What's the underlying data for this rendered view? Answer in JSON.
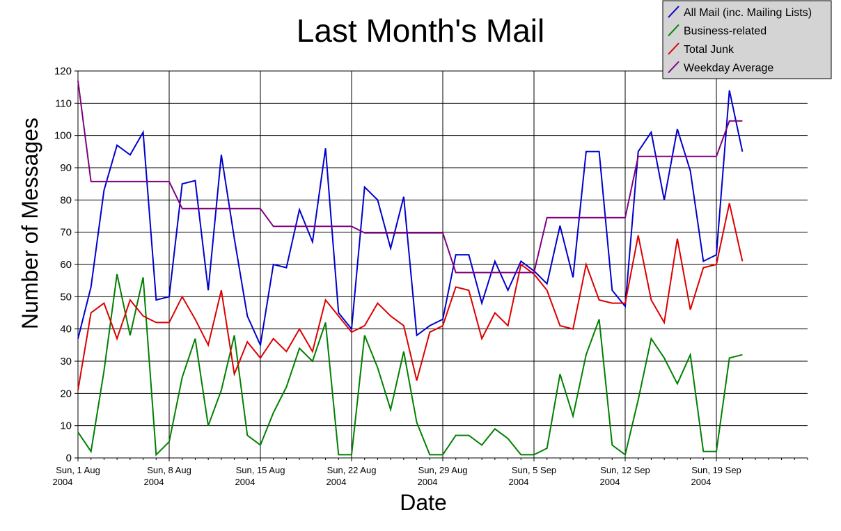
{
  "chart_data": {
    "type": "line",
    "title": "Last Month's Mail",
    "xlabel": "Date",
    "ylabel": "Number of Messages",
    "ylim": [
      0,
      120
    ],
    "yticks": [
      0,
      10,
      20,
      30,
      40,
      50,
      60,
      70,
      80,
      90,
      100,
      110,
      120
    ],
    "xlim": [
      "2004-08-01",
      "2004-09-26"
    ],
    "x_ticks": [
      {
        "date": "2004-08-01",
        "line1": "Sun, 1 Aug",
        "line2": "2004"
      },
      {
        "date": "2004-08-08",
        "line1": "Sun, 8 Aug",
        "line2": "2004"
      },
      {
        "date": "2004-08-15",
        "line1": "Sun, 15 Aug",
        "line2": "2004"
      },
      {
        "date": "2004-08-22",
        "line1": "Sun, 22 Aug",
        "line2": "2004"
      },
      {
        "date": "2004-08-29",
        "line1": "Sun, 29 Aug",
        "line2": "2004"
      },
      {
        "date": "2004-09-05",
        "line1": "Sun, 5 Sep",
        "line2": "2004"
      },
      {
        "date": "2004-09-12",
        "line1": "Sun, 12 Sep",
        "line2": "2004"
      },
      {
        "date": "2004-09-19",
        "line1": "Sun, 19 Sep",
        "line2": "2004"
      }
    ],
    "grid": true,
    "legend_position": "top-right",
    "x": [
      "2004-08-01",
      "2004-08-02",
      "2004-08-03",
      "2004-08-04",
      "2004-08-05",
      "2004-08-06",
      "2004-08-07",
      "2004-08-08",
      "2004-08-09",
      "2004-08-10",
      "2004-08-11",
      "2004-08-12",
      "2004-08-13",
      "2004-08-14",
      "2004-08-15",
      "2004-08-16",
      "2004-08-17",
      "2004-08-18",
      "2004-08-19",
      "2004-08-20",
      "2004-08-21",
      "2004-08-22",
      "2004-08-23",
      "2004-08-24",
      "2004-08-25",
      "2004-08-26",
      "2004-08-27",
      "2004-08-28",
      "2004-08-29",
      "2004-08-30",
      "2004-08-31",
      "2004-09-01",
      "2004-09-02",
      "2004-09-03",
      "2004-09-04",
      "2004-09-05",
      "2004-09-06",
      "2004-09-07",
      "2004-09-08",
      "2004-09-09",
      "2004-09-10",
      "2004-09-11",
      "2004-09-12",
      "2004-09-13",
      "2004-09-14",
      "2004-09-15",
      "2004-09-16",
      "2004-09-17",
      "2004-09-18",
      "2004-09-19",
      "2004-09-20",
      "2004-09-21"
    ],
    "series": [
      {
        "name": "All Mail (inc. Mailing Lists)",
        "color": "#0000cc",
        "values": [
          37,
          53,
          83,
          97,
          94,
          101,
          49,
          50,
          85,
          86,
          52,
          94,
          68,
          44,
          35,
          60,
          59,
          77,
          67,
          96,
          45,
          40,
          84,
          80,
          65,
          81,
          38,
          41,
          43,
          63,
          63,
          48,
          61,
          52,
          61,
          58,
          54,
          72,
          56,
          95,
          95,
          52,
          47,
          95,
          101,
          80,
          102,
          89,
          61,
          63,
          114,
          95
        ]
      },
      {
        "name": "Business-related",
        "color": "#008000",
        "values": [
          8,
          2,
          27,
          57,
          38,
          56,
          1,
          5,
          25,
          37,
          10,
          21,
          38,
          7,
          4,
          14,
          22,
          34,
          30,
          42,
          1,
          1,
          38,
          28,
          15,
          33,
          11,
          1,
          1,
          7,
          7,
          4,
          9,
          6,
          1,
          1,
          3,
          26,
          13,
          32,
          43,
          4,
          1,
          18,
          37,
          31,
          23,
          32,
          2,
          2,
          31,
          32
        ]
      },
      {
        "name": "Total Junk",
        "color": "#dd0000",
        "values": [
          21,
          45,
          48,
          37,
          49,
          44,
          42,
          42,
          50,
          43,
          35,
          52,
          26,
          36,
          31,
          37,
          33,
          40,
          33,
          49,
          44,
          39,
          41,
          48,
          44,
          41,
          24,
          39,
          41,
          53,
          52,
          37,
          45,
          41,
          60,
          57,
          52,
          41,
          40,
          60,
          49,
          48,
          48,
          69,
          49,
          42,
          68,
          46,
          59,
          60,
          79,
          61
        ]
      },
      {
        "name": "Weekday Average",
        "color": "#800080",
        "segments": [
          {
            "x": [
              "2004-08-01",
              "2004-08-02",
              "2004-08-08"
            ],
            "values": [
              117,
              85.7,
              85.7
            ]
          },
          {
            "x": [
              "2004-08-08",
              "2004-08-09",
              "2004-08-15"
            ],
            "values": [
              85.7,
              77.3,
              77.3
            ]
          },
          {
            "x": [
              "2004-08-15",
              "2004-08-16",
              "2004-08-22"
            ],
            "values": [
              77.3,
              71.8,
              71.8
            ]
          },
          {
            "x": [
              "2004-08-22",
              "2004-08-23",
              "2004-08-29"
            ],
            "values": [
              71.8,
              69.8,
              69.8
            ]
          },
          {
            "x": [
              "2004-08-29",
              "2004-08-30",
              "2004-09-05"
            ],
            "values": [
              69.8,
              57.5,
              57.5
            ]
          },
          {
            "x": [
              "2004-09-05",
              "2004-09-06",
              "2004-09-12"
            ],
            "values": [
              57.5,
              74.5,
              74.5
            ]
          },
          {
            "x": [
              "2004-09-12",
              "2004-09-13",
              "2004-09-19"
            ],
            "values": [
              74.5,
              93.5,
              93.5
            ]
          },
          {
            "x": [
              "2004-09-19",
              "2004-09-20",
              "2004-09-21"
            ],
            "values": [
              93.5,
              104.5,
              104.5
            ]
          }
        ]
      }
    ],
    "legend": [
      {
        "label": "All Mail (inc. Mailing Lists)",
        "color": "#0000cc"
      },
      {
        "label": "Business-related",
        "color": "#008000"
      },
      {
        "label": "Total Junk",
        "color": "#dd0000"
      },
      {
        "label": "Weekday Average",
        "color": "#800080"
      }
    ]
  }
}
